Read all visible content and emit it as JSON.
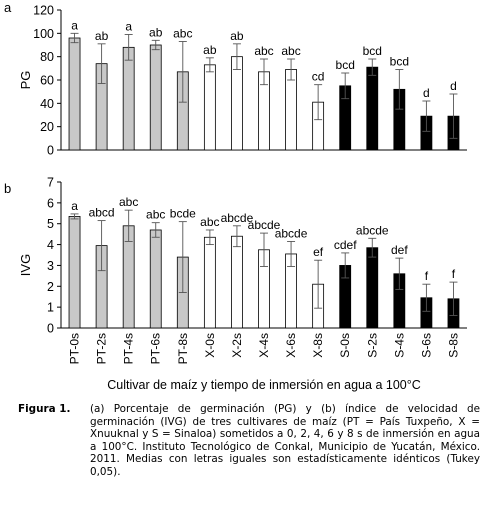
{
  "chart_data": [
    {
      "type": "bar",
      "panel_label": "a",
      "ylabel": "PG",
      "ylim": [
        0,
        120
      ],
      "yticks": [
        0,
        20,
        40,
        60,
        80,
        100,
        120
      ],
      "categories": [
        "PT-0s",
        "PT-2s",
        "PT-4s",
        "PT-6s",
        "PT-8s",
        "X-0s",
        "X-2s",
        "X-4s",
        "X-6s",
        "X-8s",
        "S-0s",
        "S-2s",
        "S-4s",
        "S-6s",
        "S-8s"
      ],
      "values": [
        96,
        74,
        88,
        90,
        67,
        73,
        80,
        67,
        69,
        41,
        55,
        71,
        52,
        29,
        29
      ],
      "errors": [
        4,
        17,
        11,
        4,
        26,
        6,
        11,
        11,
        9,
        15,
        11,
        7,
        17,
        13,
        19
      ],
      "letters": [
        "a",
        "ab",
        "a",
        "ab",
        "abc",
        "ab",
        "ab",
        "abc",
        "abc",
        "cd",
        "bcd",
        "bcd",
        "bcd",
        "d",
        "d"
      ],
      "fills": [
        "#c8c8c8",
        "#c8c8c8",
        "#c8c8c8",
        "#c8c8c8",
        "#c8c8c8",
        "#ffffff",
        "#ffffff",
        "#ffffff",
        "#ffffff",
        "#ffffff",
        "#000000",
        "#000000",
        "#000000",
        "#000000",
        "#000000"
      ],
      "grid": false
    },
    {
      "type": "bar",
      "panel_label": "b",
      "ylabel": "IVG",
      "ylim": [
        0,
        7
      ],
      "yticks": [
        0,
        1,
        2,
        3,
        4,
        5,
        6,
        7
      ],
      "xlabel": "Cultivar de maíz y tiempo de inmersión en agua a 100°C",
      "categories": [
        "PT-0s",
        "PT-2s",
        "PT-4s",
        "PT-6s",
        "PT-8s",
        "X-0s",
        "X-2s",
        "X-4s",
        "X-6s",
        "X-8s",
        "S-0s",
        "S-2s",
        "S-4s",
        "S-6s",
        "S-8s"
      ],
      "values": [
        5.35,
        3.95,
        4.9,
        4.7,
        3.4,
        4.35,
        4.4,
        3.75,
        3.55,
        2.1,
        3.0,
        3.85,
        2.6,
        1.45,
        1.4
      ],
      "errors": [
        0.12,
        1.2,
        0.75,
        0.35,
        1.7,
        0.35,
        0.5,
        0.8,
        0.6,
        1.15,
        0.6,
        0.45,
        0.75,
        0.65,
        0.8
      ],
      "letters": [
        "a",
        "abcd",
        "abc",
        "abc",
        "bcde",
        "abc",
        "abcde",
        "abcde",
        "abcde",
        "ef",
        "cdef",
        "abcde",
        "def",
        "f",
        "f"
      ],
      "fills": [
        "#c8c8c8",
        "#c8c8c8",
        "#c8c8c8",
        "#c8c8c8",
        "#c8c8c8",
        "#ffffff",
        "#ffffff",
        "#ffffff",
        "#ffffff",
        "#ffffff",
        "#000000",
        "#000000",
        "#000000",
        "#000000",
        "#000000"
      ],
      "grid": false
    }
  ],
  "caption": {
    "label": "Figura 1.",
    "text": "(a) Porcentaje de germinación (PG) y (b) índice de velocidad de germinación (IVG) de tres cultivares de maíz (PT = País Tuxpeño, X = Xnuuknal y S = Sinaloa) sometidos a 0, 2, 4, 6 y 8 s de inmersión en agua a 100°C. Instituto Tecnológico de Conkal, Municipio de Yucatán, México. 2011. Medias con letras iguales son estadísticamente idénticos (Tukey 0,05)."
  }
}
